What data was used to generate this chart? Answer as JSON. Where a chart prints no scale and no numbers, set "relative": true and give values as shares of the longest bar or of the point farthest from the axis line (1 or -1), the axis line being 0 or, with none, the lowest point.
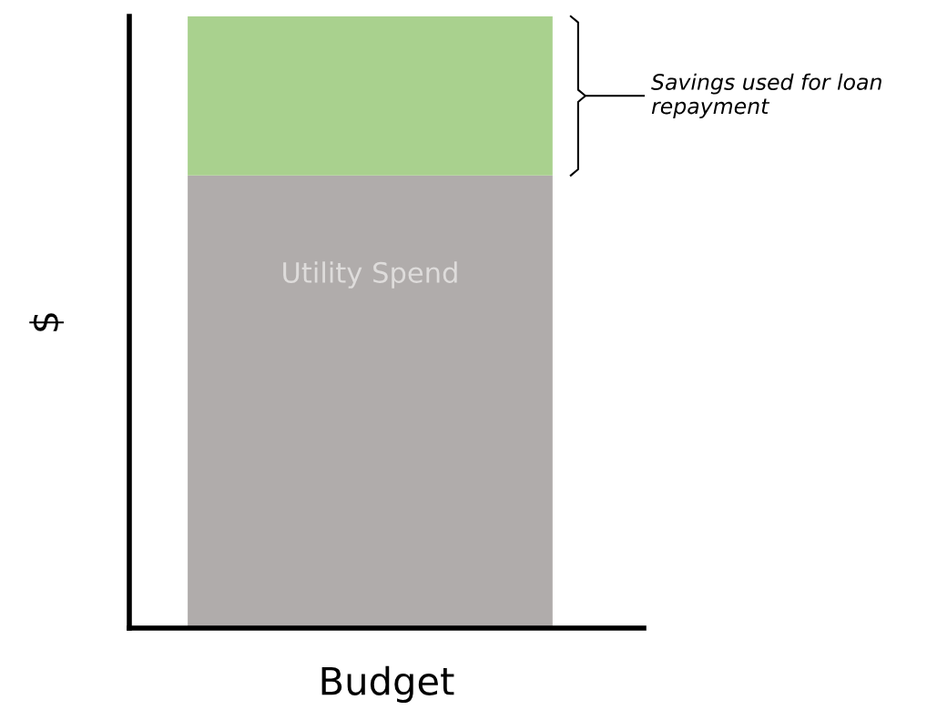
{
  "chart_data": {
    "type": "bar",
    "stacked": true,
    "relative": true,
    "xlabel": "Budget",
    "ylabel": "$",
    "categories": [
      null
    ],
    "series": [
      {
        "name": "Utility Spend",
        "color": "#b0acab",
        "values": [
          0.74
        ]
      },
      {
        "color": "#a9d18e",
        "values": [
          0.26
        ]
      }
    ],
    "annotations": [
      "Savings used for loan repayment"
    ]
  }
}
